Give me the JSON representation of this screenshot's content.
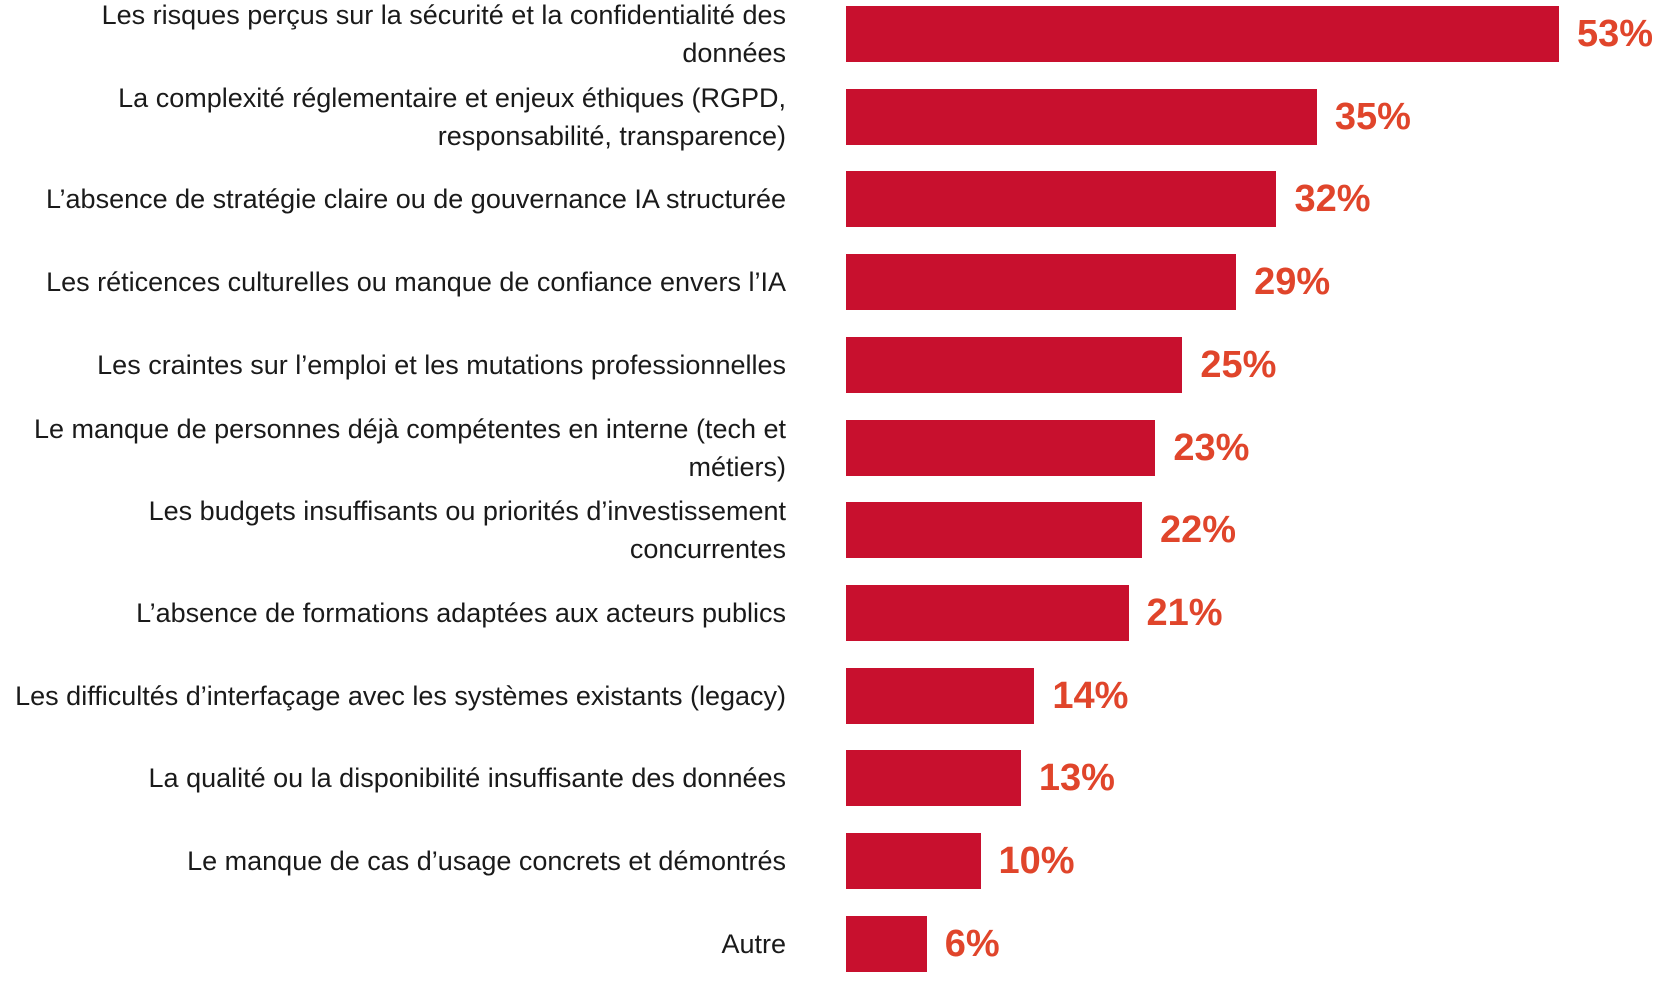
{
  "chart_data": {
    "type": "bar",
    "orientation": "horizontal",
    "color": "#c8102e",
    "label_color": "#e0452b",
    "categories": [
      "Les risques perçus sur la sécurité et la confidentialité des données",
      "La complexité réglementaire et enjeux éthiques (RGPD, responsabilité, transparence)",
      "L’absence de stratégie claire ou de gouvernance IA structurée",
      "Les réticences culturelles ou manque de confiance envers l’IA",
      "Les craintes sur l’emploi et les mutations professionnelles",
      "Le manque de personnes déjà compétentes en interne (tech et métiers)",
      "Les budgets insuffisants ou priorités d’investissement concurrentes",
      "L’absence de formations adaptées aux acteurs publics",
      "Les difficultés d’interfaçage avec les systèmes existants (legacy)",
      "La qualité ou la disponibilité insuffisante des données",
      "Le manque de cas d’usage concrets et démontrés",
      "Autre"
    ],
    "values": [
      53,
      35,
      32,
      29,
      25,
      23,
      22,
      21,
      14,
      13,
      10,
      6
    ],
    "value_labels": [
      "53%",
      "35%",
      "32%",
      "29%",
      "25%",
      "23%",
      "22%",
      "21%",
      "14%",
      "13%",
      "10%",
      "6%"
    ]
  }
}
